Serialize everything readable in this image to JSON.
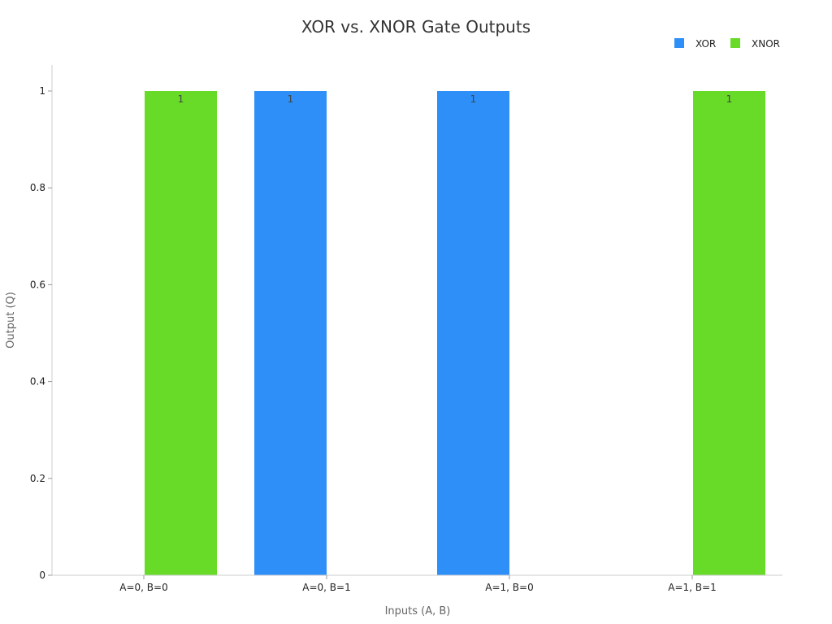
{
  "chart_data": {
    "type": "bar",
    "title": "XOR vs. XNOR Gate Outputs",
    "xlabel": "Inputs (A, B)",
    "ylabel": "Output (Q)",
    "categories": [
      "A=0, B=0",
      "A=0, B=1",
      "A=1, B=0",
      "A=1, B=1"
    ],
    "series": [
      {
        "name": "XOR",
        "color": "#2d8ff7",
        "values": [
          0,
          1,
          1,
          0
        ]
      },
      {
        "name": "XNOR",
        "color": "#67db27",
        "values": [
          1,
          0,
          0,
          1
        ]
      }
    ],
    "ylim": [
      0,
      1.05
    ],
    "yticks": [
      "0",
      "0.2",
      "0.4",
      "0.6",
      "0.8",
      "1"
    ],
    "ytick_values": [
      0,
      0.2,
      0.4,
      0.6,
      0.8,
      1
    ],
    "data_labels": true,
    "grid": false,
    "legend_position": "top-right",
    "axis_color": "#cccccc"
  }
}
